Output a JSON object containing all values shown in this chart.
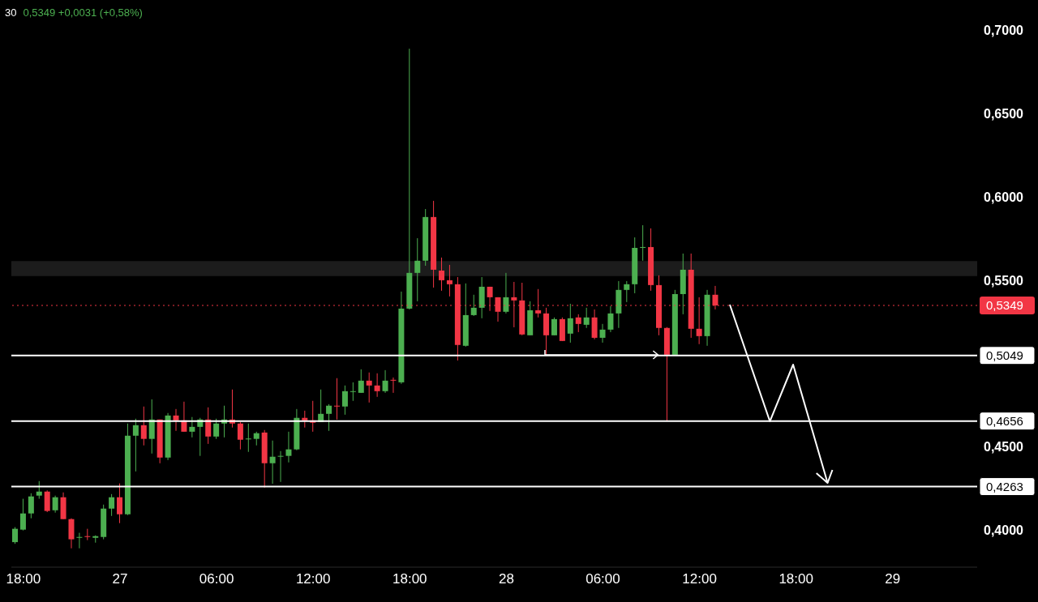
{
  "chart_data": {
    "type": "candlestick",
    "title": "30",
    "subtitle": "0,5349 +0,0031 (+0,58%)",
    "categories": [
      null,
      "18:00",
      null,
      null,
      null,
      null,
      null,
      null,
      null,
      null,
      null,
      null,
      null,
      "27",
      null,
      null,
      null,
      null,
      null,
      null,
      null,
      null,
      null,
      null,
      null,
      "06:00",
      null,
      null,
      null,
      null,
      null,
      null,
      null,
      null,
      null,
      null,
      null,
      "12:00",
      null,
      null,
      null,
      null,
      null,
      null,
      null,
      null,
      null,
      null,
      null,
      "18:00",
      null,
      null,
      null,
      null,
      null,
      null,
      null,
      null,
      null,
      null,
      null,
      "28",
      null,
      null,
      null,
      null,
      null,
      null,
      null,
      null,
      null,
      null,
      null,
      "06:00",
      null,
      null,
      null,
      null,
      null,
      null,
      null,
      null,
      null,
      null,
      null,
      "12:00",
      null,
      null,
      null,
      null,
      null,
      null,
      null,
      null,
      null,
      null,
      null,
      "18:00",
      null,
      null,
      null,
      null,
      null,
      null,
      null,
      null,
      null,
      null,
      null,
      "29",
      null,
      null,
      null,
      null,
      null,
      null,
      null,
      null,
      null,
      null
    ],
    "ohlc": [
      [
        0.393,
        0.402,
        0.392,
        0.401
      ],
      [
        0.4005,
        0.419,
        0.4,
        0.4102
      ],
      [
        0.4102,
        0.4223,
        0.4073,
        0.4204
      ],
      [
        0.4209,
        0.4296,
        0.419,
        0.4233
      ],
      [
        0.4233,
        0.424,
        0.411,
        0.4117
      ],
      [
        0.4121,
        0.4209,
        0.4107,
        0.4199
      ],
      [
        0.4199,
        0.4228,
        0.4068,
        0.4068
      ],
      [
        0.4068,
        0.4073,
        0.3893,
        0.3947
      ],
      [
        0.3956,
        0.3986,
        0.3893,
        0.3961
      ],
      [
        0.3966,
        0.401,
        0.3942,
        0.3961
      ],
      [
        0.3956,
        0.3971,
        0.3927,
        0.3966
      ],
      [
        0.3961,
        0.4155,
        0.3947,
        0.4131
      ],
      [
        0.4131,
        0.4218,
        0.4087,
        0.4199
      ],
      [
        0.4199,
        0.4282,
        0.4044,
        0.4097
      ],
      [
        0.4097,
        0.4641,
        0.4092,
        0.4568
      ],
      [
        0.4568,
        0.467,
        0.4354,
        0.4631
      ],
      [
        0.4631,
        0.4743,
        0.451,
        0.4549
      ],
      [
        0.4549,
        0.4786,
        0.4461,
        0.4665
      ],
      [
        0.4665,
        0.4665,
        0.4403,
        0.4437
      ],
      [
        0.4437,
        0.4704,
        0.4422,
        0.4689
      ],
      [
        0.4689,
        0.4728,
        0.4597,
        0.466
      ],
      [
        0.466,
        0.4772,
        0.4592,
        0.4592
      ],
      [
        0.4592,
        0.468,
        0.4558,
        0.4621
      ],
      [
        0.4621,
        0.4675,
        0.4447,
        0.4665
      ],
      [
        0.4665,
        0.4738,
        0.4519,
        0.4563
      ],
      [
        0.4563,
        0.467,
        0.4549,
        0.4641
      ],
      [
        0.4641,
        0.4748,
        0.4558,
        0.4665
      ],
      [
        0.4665,
        0.4845,
        0.4617,
        0.4641
      ],
      [
        0.4641,
        0.465,
        0.4486,
        0.4544
      ],
      [
        0.4549,
        0.4641,
        0.4471,
        0.4551
      ],
      [
        0.4549,
        0.4592,
        0.451,
        0.4583
      ],
      [
        0.4587,
        0.4602,
        0.4257,
        0.4403
      ],
      [
        0.4403,
        0.4539,
        0.428,
        0.4442
      ],
      [
        0.4445,
        0.4476,
        0.4291,
        0.4447
      ],
      [
        0.4447,
        0.4592,
        0.4408,
        0.4486
      ],
      [
        0.4486,
        0.4728,
        0.4481,
        0.4675
      ],
      [
        0.4675,
        0.4718,
        0.4617,
        0.466
      ],
      [
        0.466,
        0.4777,
        0.4592,
        0.4646
      ],
      [
        0.465,
        0.4845,
        0.465,
        0.4699
      ],
      [
        0.4699,
        0.4757,
        0.4597,
        0.4748
      ],
      [
        0.4748,
        0.4913,
        0.4665,
        0.4743
      ],
      [
        0.4743,
        0.4869,
        0.4694,
        0.4835
      ],
      [
        0.4833,
        0.4888,
        0.4777,
        0.4835
      ],
      [
        0.4825,
        0.4966,
        0.4825,
        0.4898
      ],
      [
        0.4898,
        0.4947,
        0.4767,
        0.4869
      ],
      [
        0.4869,
        0.4942,
        0.4801,
        0.4835
      ],
      [
        0.4835,
        0.4961,
        0.4825,
        0.4898
      ],
      [
        0.4903,
        0.4917,
        0.4825,
        0.4898
      ],
      [
        0.4888,
        0.5432,
        0.4879,
        0.533
      ],
      [
        0.533,
        0.6888,
        0.5325,
        0.5544
      ],
      [
        0.5544,
        0.5752,
        0.5374,
        0.5617
      ],
      [
        0.5617,
        0.5927,
        0.5587,
        0.5879
      ],
      [
        0.5879,
        0.5976,
        0.5456,
        0.5563
      ],
      [
        0.5558,
        0.5636,
        0.5437,
        0.55
      ],
      [
        0.55,
        0.5592,
        0.5403,
        0.5476
      ],
      [
        0.5476,
        0.5519,
        0.5019,
        0.5112
      ],
      [
        0.5107,
        0.5481,
        0.5102,
        0.5291
      ],
      [
        0.5291,
        0.5413,
        0.5286,
        0.5335
      ],
      [
        0.5335,
        0.5519,
        0.5272,
        0.5461
      ],
      [
        0.5461,
        0.5461,
        0.5316,
        0.5398
      ],
      [
        0.5398,
        0.5398,
        0.5252,
        0.5311
      ],
      [
        0.5311,
        0.5544,
        0.5301,
        0.5398
      ],
      [
        0.5398,
        0.549,
        0.5218,
        0.5379
      ],
      [
        0.5379,
        0.5485,
        0.517,
        0.5175
      ],
      [
        0.517,
        0.5374,
        0.517,
        0.532
      ],
      [
        0.532,
        0.5447,
        0.5277,
        0.5301
      ],
      [
        0.5301,
        0.5335,
        0.5049,
        0.517
      ],
      [
        0.517,
        0.5277,
        0.517,
        0.5267
      ],
      [
        0.5267,
        0.5277,
        0.5136,
        0.5136
      ],
      [
        0.518,
        0.5359,
        0.5126,
        0.5272
      ],
      [
        0.5277,
        0.5296,
        0.5189,
        0.5238
      ],
      [
        0.5233,
        0.5335,
        0.5214,
        0.5277
      ],
      [
        0.5277,
        0.5325,
        0.5146,
        0.5155
      ],
      [
        0.5155,
        0.5238,
        0.5126,
        0.5204
      ],
      [
        0.5204,
        0.5345,
        0.5189,
        0.5301
      ],
      [
        0.5301,
        0.5495,
        0.5214,
        0.5442
      ],
      [
        0.5442,
        0.5495,
        0.5369,
        0.5476
      ],
      [
        0.5476,
        0.5757,
        0.5422,
        0.5694
      ],
      [
        0.5694,
        0.583,
        0.5617,
        0.5699
      ],
      [
        0.5699,
        0.5811,
        0.5437,
        0.5471
      ],
      [
        0.5471,
        0.5529,
        0.517,
        0.5214
      ],
      [
        0.5214,
        0.5219,
        0.4656,
        0.5053
      ],
      [
        0.5053,
        0.5442,
        0.5049,
        0.5417
      ],
      [
        0.5417,
        0.566,
        0.5296,
        0.5563
      ],
      [
        0.5563,
        0.566,
        0.5155,
        0.5209
      ],
      [
        0.5209,
        0.5398,
        0.5117,
        0.5165
      ],
      [
        0.5165,
        0.5442,
        0.5107,
        0.5413
      ],
      [
        0.5413,
        0.5466,
        0.5325,
        0.5349
      ],
      null,
      null,
      null,
      null,
      null,
      null,
      null,
      null,
      null,
      null,
      null,
      null,
      null,
      null,
      null,
      null,
      null,
      null,
      null,
      null,
      null,
      null,
      null,
      null,
      null,
      null,
      null,
      null,
      null,
      null,
      null,
      null
    ],
    "colors": [
      "#4caf50",
      "#4caf50",
      "#4caf50",
      "#4caf50",
      "#f23645",
      "#4caf50",
      "#f23645",
      "#f23645",
      "#4caf50",
      "#f23645",
      "#4caf50",
      "#4caf50",
      "#4caf50",
      "#f23645",
      "#4caf50",
      "#4caf50",
      "#f23645",
      "#4caf50",
      "#f23645",
      "#4caf50",
      "#f23645",
      "#f23645",
      "#4caf50",
      "#4caf50",
      "#f23645",
      "#4caf50",
      "#4caf50",
      "#f23645",
      "#f23645",
      "#4caf50",
      "#4caf50",
      "#f23645",
      "#4caf50",
      "#4caf50",
      "#4caf50",
      "#4caf50",
      "#f23645",
      "#f23645",
      "#4caf50",
      "#4caf50",
      "#f23645",
      "#4caf50",
      "#4caf50",
      "#4caf50",
      "#f23645",
      "#f23645",
      "#4caf50",
      "#f23645",
      "#4caf50",
      "#4caf50",
      "#4caf50",
      "#4caf50",
      "#f23645",
      "#f23645",
      "#f23645",
      "#f23645",
      "#4caf50",
      "#4caf50",
      "#4caf50",
      "#f23645",
      "#f23645",
      "#4caf50",
      "#f23645",
      "#f23645",
      "#4caf50",
      "#f23645",
      "#f23645",
      "#4caf50",
      "#f23645",
      "#4caf50",
      "#f23645",
      "#4caf50",
      "#f23645",
      "#4caf50",
      "#4caf50",
      "#4caf50",
      "#4caf50",
      "#4caf50",
      "#4caf50",
      "#f23645",
      "#f23645",
      "#f23645",
      "#4caf50",
      "#4caf50",
      "#f23645",
      "#f23645",
      "#4caf50",
      "#f23645",
      null,
      null,
      null,
      null,
      null,
      null,
      null,
      null,
      null,
      null,
      null,
      null,
      null,
      null,
      null,
      null,
      null,
      null,
      null,
      null,
      null,
      null,
      null,
      null,
      null,
      null,
      null,
      null,
      null,
      null,
      null,
      null
    ],
    "ylim": [
      0.378,
      0.718
    ],
    "yticks": [
      {
        "value": 0.4,
        "label": "0,4000"
      },
      {
        "value": 0.45,
        "label": "0,4500"
      },
      {
        "value": 0.55,
        "label": "0,5500"
      },
      {
        "value": 0.6,
        "label": "0,6000"
      },
      {
        "value": 0.65,
        "label": "0,6500"
      },
      {
        "value": 0.7,
        "label": "0,7000"
      }
    ],
    "ref_lines": [
      {
        "axis": "y",
        "value": 0.5349,
        "label": "0,5349",
        "color": "#f23645",
        "line_style": "dotted"
      },
      {
        "axis": "y",
        "value": 0.5049,
        "label": "0,5049",
        "color": "#ffffff",
        "line_style": "solid"
      },
      {
        "axis": "y",
        "value": 0.4656,
        "label": "0,4656",
        "color": "#ffffff",
        "line_style": "solid"
      },
      {
        "axis": "y",
        "value": 0.4263,
        "label": "0,4263",
        "color": "#ffffff",
        "line_style": "solid"
      }
    ],
    "bands": [
      {
        "axis": "y",
        "from": 0.5525,
        "to": 0.5615,
        "color": "#333333"
      }
    ],
    "grid": false,
    "legend": false
  }
}
